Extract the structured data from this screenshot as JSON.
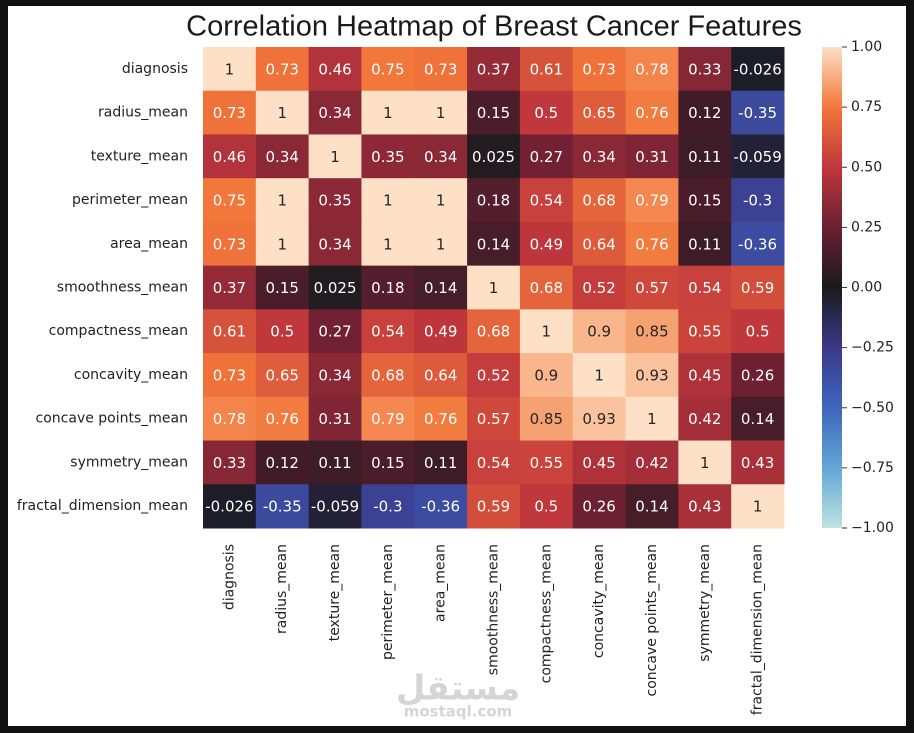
{
  "chart_data": {
    "type": "heatmap",
    "title": "Correlation Heatmap of Breast Cancer Features",
    "categories": [
      "diagnosis",
      "radius_mean",
      "texture_mean",
      "perimeter_mean",
      "area_mean",
      "smoothness_mean",
      "compactness_mean",
      "concavity_mean",
      "concave points_mean",
      "symmetry_mean",
      "fractal_dimension_mean"
    ],
    "values": [
      [
        1,
        0.73,
        0.46,
        0.75,
        0.73,
        0.37,
        0.61,
        0.73,
        0.78,
        0.33,
        -0.026
      ],
      [
        0.73,
        1,
        0.34,
        1,
        1,
        0.15,
        0.5,
        0.65,
        0.76,
        0.12,
        -0.35
      ],
      [
        0.46,
        0.34,
        1,
        0.35,
        0.34,
        0.025,
        0.27,
        0.34,
        0.31,
        0.11,
        -0.059
      ],
      [
        0.75,
        1,
        0.35,
        1,
        1,
        0.18,
        0.54,
        0.68,
        0.79,
        0.15,
        -0.3
      ],
      [
        0.73,
        1,
        0.34,
        1,
        1,
        0.14,
        0.49,
        0.64,
        0.76,
        0.11,
        -0.36
      ],
      [
        0.37,
        0.15,
        0.025,
        0.18,
        0.14,
        1,
        0.68,
        0.52,
        0.57,
        0.54,
        0.59
      ],
      [
        0.61,
        0.5,
        0.27,
        0.54,
        0.49,
        0.68,
        1,
        0.9,
        0.85,
        0.55,
        0.5
      ],
      [
        0.73,
        0.65,
        0.34,
        0.68,
        0.64,
        0.52,
        0.9,
        1,
        0.93,
        0.45,
        0.26
      ],
      [
        0.78,
        0.76,
        0.31,
        0.79,
        0.76,
        0.57,
        0.85,
        0.93,
        1,
        0.42,
        0.14
      ],
      [
        0.33,
        0.12,
        0.11,
        0.15,
        0.11,
        0.54,
        0.55,
        0.45,
        0.42,
        1,
        0.43
      ],
      [
        -0.026,
        -0.35,
        -0.059,
        -0.3,
        -0.36,
        0.59,
        0.5,
        0.26,
        0.14,
        0.43,
        1
      ]
    ],
    "clim": [
      -1,
      1
    ],
    "colorscale": [
      "#bfe3e0",
      "#62a6d6",
      "#3d66bd",
      "#3b3889",
      "#1a1a1e",
      "#6b1f33",
      "#c0373c",
      "#f2773a",
      "#fde0c5"
    ],
    "cbar_ticks": [
      {
        "value": 1,
        "label": "1.00"
      },
      {
        "value": 0.75,
        "label": "0.75"
      },
      {
        "value": 0.5,
        "label": "0.50"
      },
      {
        "value": 0.25,
        "label": "0.25"
      },
      {
        "value": 0,
        "label": "0.00"
      },
      {
        "value": -0.25,
        "label": "−0.25"
      },
      {
        "value": -0.5,
        "label": "−0.50"
      },
      {
        "value": -0.75,
        "label": "−0.75"
      },
      {
        "value": -1,
        "label": "−1.00"
      }
    ]
  },
  "watermark": {
    "logo": "مستقل",
    "text": "mostaql.com"
  }
}
